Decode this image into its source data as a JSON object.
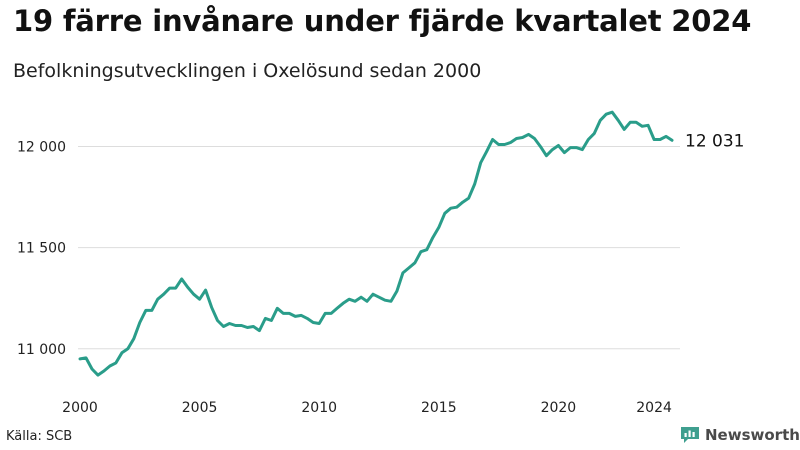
{
  "title": "19 färre invånare under fjärde kvartalet 2024",
  "subtitle": "Befolkningsutvecklingen i Oxelösund sedan 2000",
  "source": "Källa: SCB",
  "brand": {
    "name": "Newsworthy",
    "icon": "newsworthy-chart-icon",
    "color": "#3f9f8f"
  },
  "colors": {
    "line": "#2a9d8a",
    "grid": "#dddddd",
    "axis_text": "#222222"
  },
  "chart_data": {
    "type": "line",
    "title": "19 färre invånare under fjärde kvartalet 2024",
    "subtitle": "Befolkningsutvecklingen i Oxelösund sedan 2000",
    "xlabel": "",
    "ylabel": "",
    "xlim": [
      2000,
      2025
    ],
    "ylim": [
      10900,
      12250
    ],
    "grid": true,
    "x_ticks": [
      {
        "value": 2000,
        "label": "2000"
      },
      {
        "value": 2005,
        "label": "2005"
      },
      {
        "value": 2010,
        "label": "2010"
      },
      {
        "value": 2015,
        "label": "2015"
      },
      {
        "value": 2020,
        "label": "2020"
      },
      {
        "value": 2024,
        "label": "2024"
      }
    ],
    "y_ticks": [
      {
        "value": 11000,
        "label": "11 000"
      },
      {
        "value": 11500,
        "label": "11 500"
      },
      {
        "value": 12000,
        "label": "12 000"
      }
    ],
    "end_label": "12 031",
    "series": [
      {
        "frequency": "quarterly",
        "start": "2000-Q1",
        "x": [
          2000.0,
          2000.25,
          2000.5,
          2000.75,
          2001.0,
          2001.25,
          2001.5,
          2001.75,
          2002.0,
          2002.25,
          2002.5,
          2002.75,
          2003.0,
          2003.25,
          2003.5,
          2003.75,
          2004.0,
          2004.25,
          2004.5,
          2004.75,
          2005.0,
          2005.25,
          2005.5,
          2005.75,
          2006.0,
          2006.25,
          2006.5,
          2006.75,
          2007.0,
          2007.25,
          2007.5,
          2007.75,
          2008.0,
          2008.25,
          2008.5,
          2008.75,
          2009.0,
          2009.25,
          2009.5,
          2009.75,
          2010.0,
          2010.25,
          2010.5,
          2010.75,
          2011.0,
          2011.25,
          2011.5,
          2011.75,
          2012.0,
          2012.25,
          2012.5,
          2012.75,
          2013.0,
          2013.25,
          2013.5,
          2013.75,
          2014.0,
          2014.25,
          2014.5,
          2014.75,
          2015.0,
          2015.25,
          2015.5,
          2015.75,
          2016.0,
          2016.25,
          2016.5,
          2016.75,
          2017.0,
          2017.25,
          2017.5,
          2017.75,
          2018.0,
          2018.25,
          2018.5,
          2018.75,
          2019.0,
          2019.25,
          2019.5,
          2019.75,
          2020.0,
          2020.25,
          2020.5,
          2020.75,
          2021.0,
          2021.25,
          2021.5,
          2021.75,
          2022.0,
          2022.25,
          2022.5,
          2022.75,
          2023.0,
          2023.25,
          2023.5,
          2023.75,
          2024.0,
          2024.25,
          2024.5,
          2024.75
        ],
        "values": [
          10950,
          10955,
          10900,
          10870,
          10890,
          10915,
          10930,
          10980,
          11000,
          11050,
          11130,
          11190,
          11190,
          11245,
          11270,
          11300,
          11300,
          11345,
          11305,
          11270,
          11245,
          11290,
          11205,
          11140,
          11110,
          11125,
          11115,
          11115,
          11105,
          11110,
          11090,
          11150,
          11140,
          11200,
          11175,
          11175,
          11160,
          11165,
          11150,
          11130,
          11125,
          11175,
          11175,
          11200,
          11225,
          11245,
          11235,
          11255,
          11235,
          11270,
          11255,
          11240,
          11235,
          11285,
          11375,
          11400,
          11425,
          11480,
          11490,
          11550,
          11600,
          11670,
          11695,
          11700,
          11725,
          11745,
          11815,
          11920,
          11975,
          12035,
          12010,
          12010,
          12020,
          12040,
          12045,
          12060,
          12040,
          12000,
          11955,
          11985,
          12005,
          11970,
          11995,
          11995,
          11985,
          12035,
          12065,
          12130,
          12160,
          12170,
          12130,
          12085,
          12120,
          12120,
          12100,
          12105,
          12035,
          12035,
          12050,
          12031
        ]
      }
    ]
  }
}
